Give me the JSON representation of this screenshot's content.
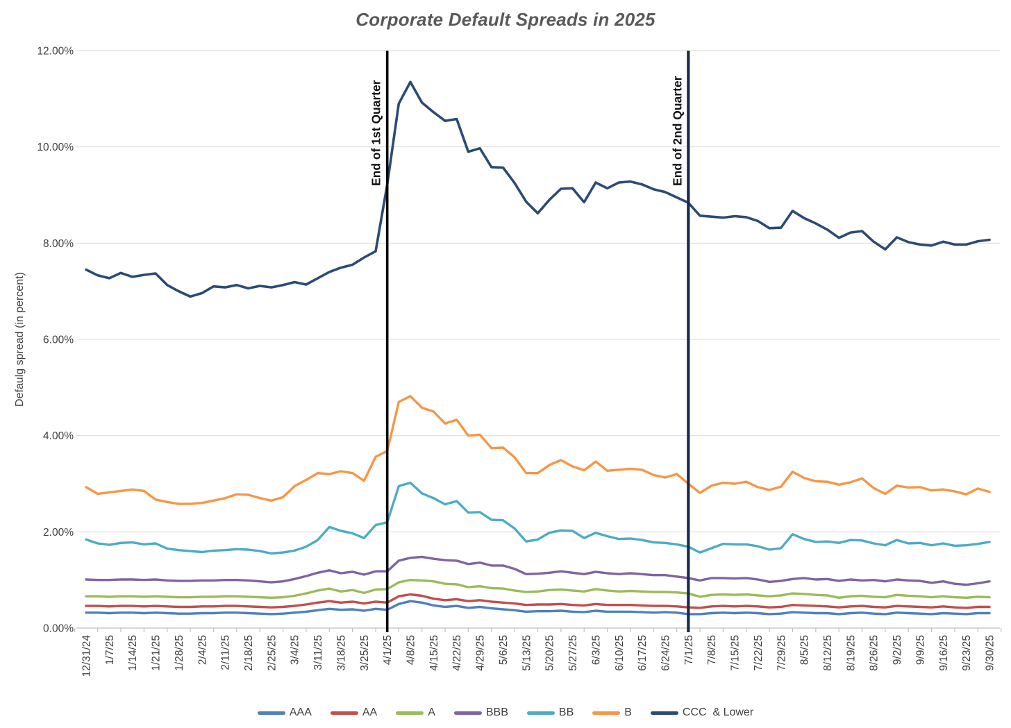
{
  "chart_data": {
    "type": "line",
    "title": "Corporate Default Spreads in 2025",
    "ylabel": "Defaulg spread (in percent)",
    "xlabel": "",
    "ylim": [
      0,
      12
    ],
    "grid": "horizontal",
    "legend_position": "bottom",
    "y_tick_labels": [
      "0.00%",
      "2.00%",
      "4.00%",
      "6.00%",
      "8.00%",
      "10.00%",
      "12.00%"
    ],
    "y_tick_values": [
      0,
      2,
      4,
      6,
      8,
      10,
      12
    ],
    "x_tick_labels": [
      "12/31/24",
      "1/7/25",
      "1/14/25",
      "1/21/25",
      "1/28/25",
      "2/4/25",
      "2/11/25",
      "2/18/25",
      "2/25/25",
      "3/4/25",
      "3/11/25",
      "3/18/25",
      "3/25/25",
      "4/1/25",
      "4/8/25",
      "4/15/25",
      "4/22/25",
      "4/29/25",
      "5/6/25",
      "5/13/25",
      "5/20/25",
      "5/27/25",
      "6/3/25",
      "6/10/25",
      "6/17/25",
      "6/24/25",
      "7/1/25",
      "7/8/25",
      "7/15/25",
      "7/22/25",
      "7/29/25",
      "8/5/25",
      "8/12/25",
      "8/19/25",
      "8/26/25",
      "9/2/25",
      "9/9/25",
      "9/16/25",
      "9/23/25",
      "9/30/25"
    ],
    "sampling_note": "values in percent, sampled twice per weekly tick (half-week grid, 79 points from 12/31/24 to 9/30/25)",
    "annotations": [
      {
        "label": "End of 1st Quarter",
        "week_index": 13,
        "at_date": "4/1/25",
        "color": "#000000",
        "line_width": 3.6
      },
      {
        "label": "End of 2nd Quarter",
        "week_index": 26,
        "at_date": "7/1/25",
        "color": "#16294F",
        "line_width": 4.2
      }
    ],
    "series": [
      {
        "name": "AAA",
        "color": "#4F81BD",
        "values": [
          0.32,
          0.32,
          0.31,
          0.32,
          0.32,
          0.31,
          0.32,
          0.31,
          0.3,
          0.3,
          0.31,
          0.31,
          0.32,
          0.32,
          0.31,
          0.3,
          0.29,
          0.3,
          0.32,
          0.34,
          0.37,
          0.4,
          0.38,
          0.39,
          0.36,
          0.4,
          0.38,
          0.5,
          0.56,
          0.53,
          0.47,
          0.44,
          0.46,
          0.42,
          0.44,
          0.41,
          0.39,
          0.37,
          0.34,
          0.35,
          0.35,
          0.36,
          0.34,
          0.33,
          0.36,
          0.34,
          0.34,
          0.34,
          0.33,
          0.32,
          0.33,
          0.32,
          0.29,
          0.29,
          0.31,
          0.32,
          0.31,
          0.32,
          0.31,
          0.29,
          0.3,
          0.33,
          0.32,
          0.31,
          0.31,
          0.29,
          0.31,
          0.32,
          0.3,
          0.29,
          0.32,
          0.31,
          0.3,
          0.29,
          0.31,
          0.3,
          0.29,
          0.31,
          0.31
        ]
      },
      {
        "name": "AA",
        "color": "#C0504D",
        "values": [
          0.46,
          0.46,
          0.45,
          0.46,
          0.46,
          0.45,
          0.46,
          0.45,
          0.44,
          0.44,
          0.45,
          0.45,
          0.46,
          0.46,
          0.45,
          0.44,
          0.43,
          0.44,
          0.46,
          0.49,
          0.53,
          0.56,
          0.53,
          0.55,
          0.51,
          0.55,
          0.53,
          0.66,
          0.7,
          0.67,
          0.61,
          0.58,
          0.6,
          0.56,
          0.58,
          0.55,
          0.53,
          0.51,
          0.48,
          0.49,
          0.49,
          0.5,
          0.48,
          0.47,
          0.5,
          0.48,
          0.48,
          0.48,
          0.47,
          0.46,
          0.46,
          0.45,
          0.43,
          0.42,
          0.45,
          0.46,
          0.45,
          0.46,
          0.45,
          0.43,
          0.44,
          0.48,
          0.47,
          0.46,
          0.45,
          0.43,
          0.45,
          0.46,
          0.44,
          0.43,
          0.46,
          0.45,
          0.44,
          0.43,
          0.45,
          0.43,
          0.42,
          0.44,
          0.44
        ]
      },
      {
        "name": "A",
        "color": "#9BBB59",
        "values": [
          0.66,
          0.66,
          0.65,
          0.66,
          0.66,
          0.65,
          0.66,
          0.65,
          0.64,
          0.64,
          0.65,
          0.65,
          0.66,
          0.66,
          0.65,
          0.64,
          0.63,
          0.64,
          0.67,
          0.72,
          0.78,
          0.82,
          0.76,
          0.79,
          0.73,
          0.8,
          0.81,
          0.95,
          1.0,
          0.99,
          0.97,
          0.92,
          0.91,
          0.85,
          0.87,
          0.83,
          0.82,
          0.78,
          0.75,
          0.76,
          0.79,
          0.8,
          0.78,
          0.76,
          0.81,
          0.78,
          0.76,
          0.77,
          0.76,
          0.75,
          0.75,
          0.74,
          0.72,
          0.65,
          0.69,
          0.7,
          0.69,
          0.7,
          0.68,
          0.66,
          0.68,
          0.72,
          0.71,
          0.69,
          0.68,
          0.63,
          0.66,
          0.67,
          0.65,
          0.64,
          0.69,
          0.67,
          0.66,
          0.64,
          0.66,
          0.64,
          0.63,
          0.65,
          0.64
        ]
      },
      {
        "name": "BBB",
        "color": "#8064A2",
        "values": [
          1.01,
          1.0,
          1.0,
          1.01,
          1.01,
          1.0,
          1.01,
          0.99,
          0.98,
          0.98,
          0.99,
          0.99,
          1.0,
          1.0,
          0.99,
          0.97,
          0.95,
          0.97,
          1.02,
          1.08,
          1.15,
          1.2,
          1.14,
          1.17,
          1.11,
          1.18,
          1.18,
          1.4,
          1.46,
          1.48,
          1.44,
          1.41,
          1.4,
          1.33,
          1.36,
          1.3,
          1.3,
          1.23,
          1.12,
          1.13,
          1.15,
          1.18,
          1.15,
          1.12,
          1.17,
          1.14,
          1.12,
          1.14,
          1.12,
          1.1,
          1.1,
          1.07,
          1.04,
          0.99,
          1.04,
          1.04,
          1.03,
          1.04,
          1.01,
          0.96,
          0.98,
          1.02,
          1.04,
          1.01,
          1.02,
          0.98,
          1.01,
          0.99,
          1.0,
          0.97,
          1.01,
          0.99,
          0.98,
          0.94,
          0.97,
          0.92,
          0.9,
          0.93,
          0.97
        ]
      },
      {
        "name": "BB",
        "color": "#4BACC6",
        "values": [
          1.84,
          1.76,
          1.73,
          1.77,
          1.78,
          1.74,
          1.76,
          1.65,
          1.62,
          1.6,
          1.58,
          1.61,
          1.62,
          1.64,
          1.63,
          1.6,
          1.55,
          1.57,
          1.61,
          1.69,
          1.83,
          2.1,
          2.02,
          1.97,
          1.87,
          2.14,
          2.2,
          2.95,
          3.02,
          2.8,
          2.7,
          2.57,
          2.64,
          2.4,
          2.41,
          2.25,
          2.24,
          2.07,
          1.8,
          1.84,
          1.98,
          2.03,
          2.02,
          1.87,
          1.98,
          1.91,
          1.85,
          1.86,
          1.83,
          1.78,
          1.77,
          1.74,
          1.69,
          1.57,
          1.66,
          1.75,
          1.74,
          1.74,
          1.7,
          1.63,
          1.66,
          1.95,
          1.85,
          1.79,
          1.8,
          1.77,
          1.83,
          1.82,
          1.76,
          1.72,
          1.83,
          1.76,
          1.77,
          1.72,
          1.76,
          1.71,
          1.72,
          1.75,
          1.79
        ]
      },
      {
        "name": "B",
        "color": "#F79646",
        "values": [
          2.93,
          2.79,
          2.82,
          2.85,
          2.88,
          2.85,
          2.67,
          2.62,
          2.58,
          2.58,
          2.6,
          2.65,
          2.7,
          2.78,
          2.77,
          2.7,
          2.65,
          2.72,
          2.95,
          3.08,
          3.22,
          3.2,
          3.26,
          3.22,
          3.06,
          3.56,
          3.68,
          4.7,
          4.82,
          4.58,
          4.5,
          4.25,
          4.33,
          4.0,
          4.02,
          3.74,
          3.75,
          3.55,
          3.22,
          3.22,
          3.39,
          3.49,
          3.36,
          3.28,
          3.46,
          3.27,
          3.29,
          3.31,
          3.29,
          3.18,
          3.13,
          3.2,
          3.0,
          2.81,
          2.96,
          3.02,
          3.0,
          3.04,
          2.93,
          2.87,
          2.94,
          3.25,
          3.12,
          3.05,
          3.04,
          2.98,
          3.03,
          3.11,
          2.91,
          2.79,
          2.96,
          2.92,
          2.93,
          2.86,
          2.88,
          2.84,
          2.78,
          2.9,
          2.83
        ]
      },
      {
        "name": "CCC  & Lower",
        "color": "#2B4B75",
        "values": [
          7.45,
          7.33,
          7.27,
          7.38,
          7.3,
          7.34,
          7.37,
          7.13,
          7.0,
          6.89,
          6.96,
          7.1,
          7.08,
          7.13,
          7.06,
          7.11,
          7.08,
          7.13,
          7.19,
          7.14,
          7.27,
          7.4,
          7.49,
          7.55,
          7.7,
          7.83,
          9.22,
          10.9,
          11.35,
          10.92,
          10.72,
          10.54,
          10.58,
          9.9,
          9.97,
          9.58,
          9.57,
          9.25,
          8.86,
          8.62,
          8.9,
          9.13,
          9.14,
          8.85,
          9.26,
          9.14,
          9.26,
          9.28,
          9.22,
          9.12,
          9.06,
          8.95,
          8.84,
          8.57,
          8.55,
          8.53,
          8.56,
          8.54,
          8.46,
          8.31,
          8.32,
          8.67,
          8.52,
          8.41,
          8.28,
          8.11,
          8.22,
          8.25,
          8.03,
          7.87,
          8.12,
          8.02,
          7.97,
          7.95,
          8.03,
          7.97,
          7.97,
          8.04,
          8.07
        ]
      }
    ]
  },
  "style_colors": {
    "gridline": "#d9d9d9",
    "axis_line": "#bfbfbf",
    "tick_text": "#3f3f3f",
    "title_text": "#595959"
  }
}
